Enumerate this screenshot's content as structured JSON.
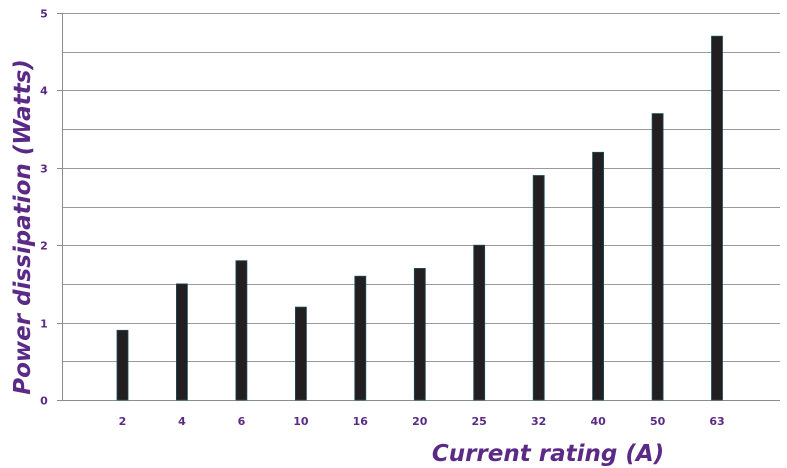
{
  "chart_data": {
    "type": "bar",
    "title": "",
    "xlabel": "Current rating (A)",
    "ylabel": "Power dissipation (Watts)",
    "categories": [
      "2",
      "4",
      "6",
      "10",
      "16",
      "20",
      "25",
      "32",
      "40",
      "50",
      "63"
    ],
    "values": [
      0.9,
      1.5,
      1.8,
      1.2,
      1.6,
      1.7,
      2.0,
      2.9,
      3.2,
      3.7,
      4.7
    ],
    "ylim": [
      0,
      5
    ],
    "yticks": [
      "0",
      "1",
      "2",
      "3",
      "4",
      "5"
    ],
    "grid": true,
    "legend": "none",
    "colors": {
      "bar": "#231f20",
      "bar_edge": "#1b4f5a",
      "text": "#5b2a86",
      "grid": "#9a9a9a",
      "axis": "#8c8c8c"
    }
  }
}
